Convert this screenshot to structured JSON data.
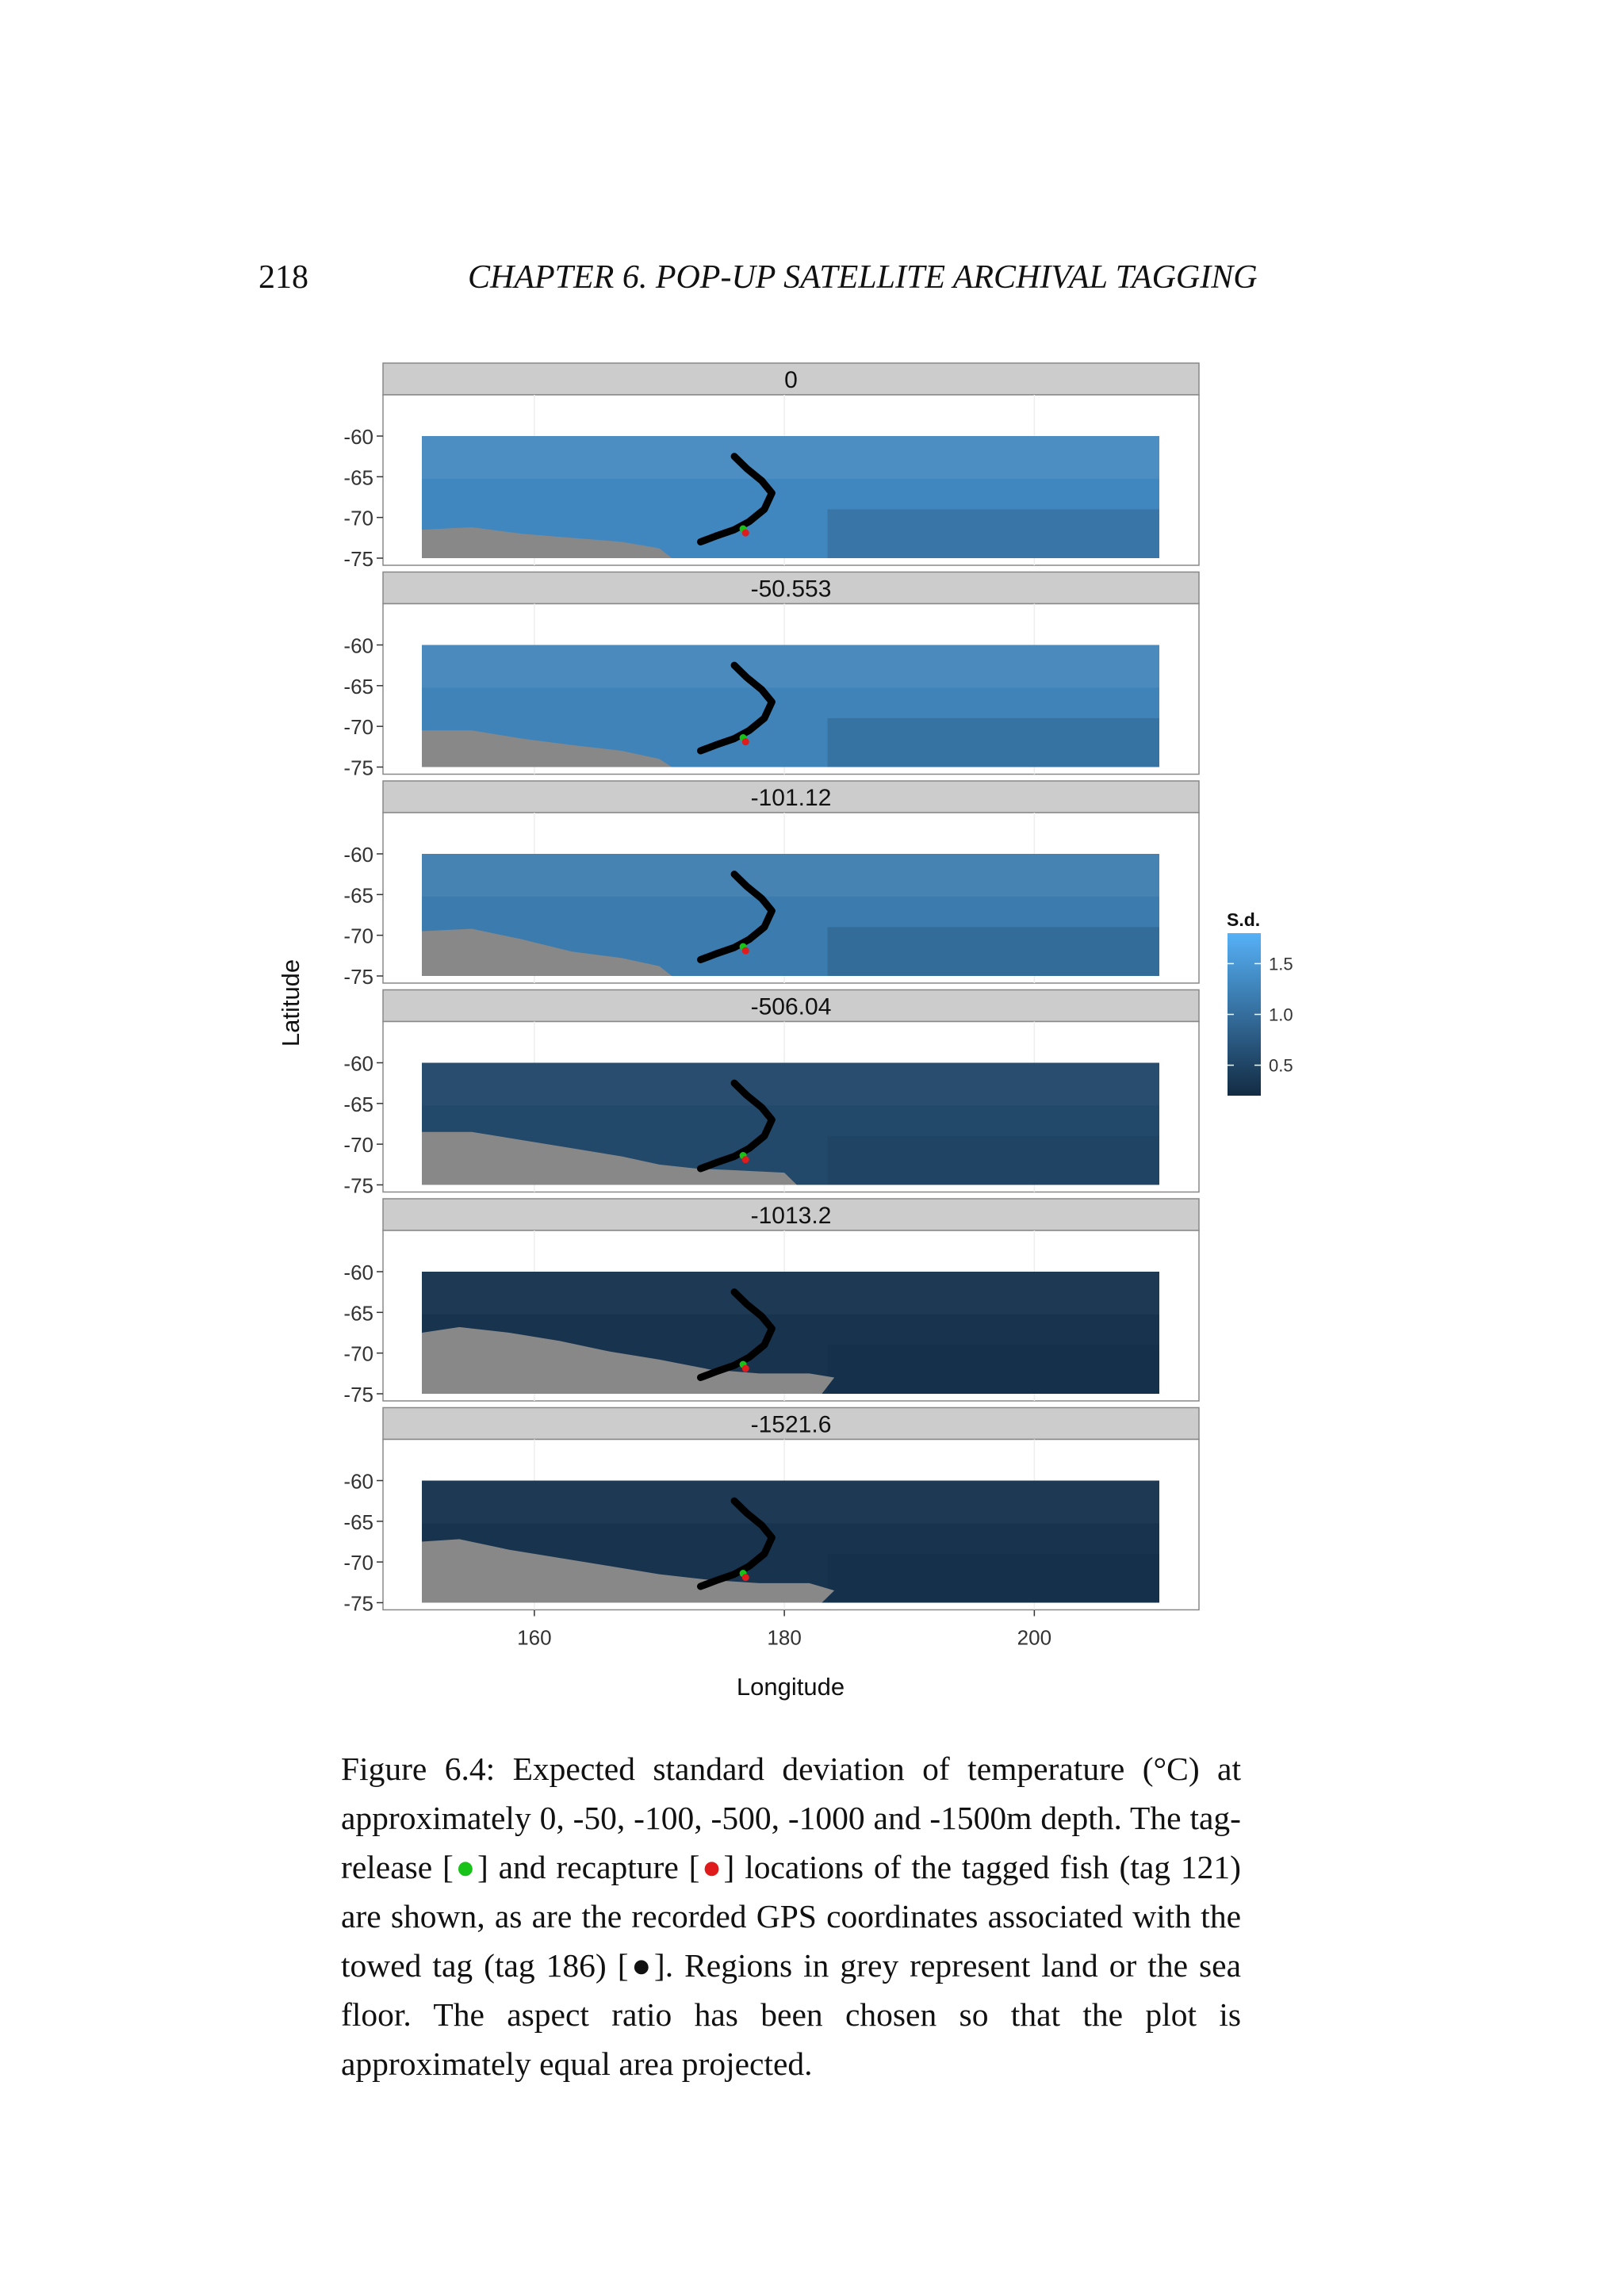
{
  "header": {
    "page_number": "218",
    "running_title": "CHAPTER 6.  POP-UP SATELLITE ARCHIVAL TAGGING"
  },
  "chart_data": {
    "type": "heatmap",
    "title": "",
    "xlabel": "Longitude",
    "ylabel": "Latitude",
    "xlim": [
      148,
      214
    ],
    "ylim": [
      -78,
      -58
    ],
    "x_ticks": [
      "160",
      "180",
      "200"
    ],
    "y_ticks": [
      "-60",
      "-65",
      "-70",
      "-75"
    ],
    "facet_variable": "depth",
    "grid": true,
    "panels": [
      {
        "label": "0",
        "depth": 0,
        "land_edge": [
          [
            151,
            -71.5
          ],
          [
            155,
            -71.2
          ],
          [
            159,
            -72
          ],
          [
            163,
            -72.5
          ],
          [
            167,
            -73
          ],
          [
            170,
            -73.8
          ],
          [
            171,
            -75
          ]
        ]
      },
      {
        "label": "-50.553",
        "depth": -50.553,
        "land_edge": [
          [
            151,
            -70.5
          ],
          [
            155,
            -70.5
          ],
          [
            159,
            -71.5
          ],
          [
            163,
            -72.3
          ],
          [
            167,
            -73
          ],
          [
            170,
            -74
          ],
          [
            171,
            -75
          ]
        ]
      },
      {
        "label": "-101.12",
        "depth": -101.12,
        "land_edge": [
          [
            151,
            -69.5
          ],
          [
            155,
            -69.2
          ],
          [
            159,
            -70.5
          ],
          [
            163,
            -72
          ],
          [
            167,
            -72.8
          ],
          [
            170,
            -73.8
          ],
          [
            171,
            -75
          ]
        ]
      },
      {
        "label": "-506.04",
        "depth": -506.04,
        "land_edge": [
          [
            151,
            -68.5
          ],
          [
            155,
            -68.5
          ],
          [
            159,
            -69.5
          ],
          [
            163,
            -70.5
          ],
          [
            167,
            -71.5
          ],
          [
            170,
            -72.5
          ],
          [
            173,
            -73
          ],
          [
            176,
            -73.2
          ],
          [
            180,
            -73.5
          ],
          [
            181,
            -75
          ]
        ]
      },
      {
        "label": "-1013.2",
        "depth": -1013.2,
        "land_edge": [
          [
            151,
            -67.5
          ],
          [
            154,
            -66.8
          ],
          [
            158,
            -67.5
          ],
          [
            162,
            -68.5
          ],
          [
            166,
            -69.8
          ],
          [
            170,
            -70.8
          ],
          [
            174,
            -72
          ],
          [
            178,
            -72.5
          ],
          [
            182,
            -72.5
          ],
          [
            184,
            -73
          ],
          [
            183,
            -75
          ]
        ]
      },
      {
        "label": "-1521.6",
        "depth": -1521.6,
        "land_edge": [
          [
            151,
            -67.5
          ],
          [
            154,
            -67.2
          ],
          [
            158,
            -68.5
          ],
          [
            162,
            -69.5
          ],
          [
            166,
            -70.5
          ],
          [
            170,
            -71.5
          ],
          [
            174,
            -72.2
          ],
          [
            178,
            -72.6
          ],
          [
            182,
            -72.6
          ],
          [
            184,
            -73.5
          ],
          [
            183,
            -75
          ]
        ]
      }
    ],
    "sd_level_by_panel": [
      1.3,
      1.25,
      1.15,
      0.55,
      0.3,
      0.3
    ],
    "track_gps_tag_186": [
      [
        176,
        -62.5
      ],
      [
        177,
        -64
      ],
      [
        178.2,
        -65.5
      ],
      [
        179,
        -67
      ],
      [
        178.4,
        -69
      ],
      [
        177.2,
        -70.5
      ],
      [
        176,
        -71.5
      ],
      [
        174.5,
        -72.3
      ],
      [
        173.3,
        -73
      ]
    ],
    "release_tag_121": [
      176.7,
      -71.4
    ],
    "recapture_tag_121": [
      176.9,
      -71.9
    ],
    "legend": {
      "title": "S.d.",
      "placement": "right",
      "ticks": [
        "1.5",
        "1.0",
        "0.5"
      ],
      "tick_values": [
        1.5,
        1.0,
        0.5
      ],
      "range": [
        0.2,
        1.8
      ],
      "color_low": "#132b43",
      "color_high": "#56b1f7"
    },
    "colors": {
      "land": "#888888",
      "strip": "#cccccc",
      "track": "#000000",
      "release": "#19c219",
      "recapture": "#e01b1b"
    }
  },
  "caption": {
    "part1": "Figure 6.4: Expected standard deviation of temperature (°C) at approximately 0, -50, -100, -500, -1000 and -1500m depth. The tag-release [",
    "release_marker": "●",
    "part2": "] and recapture [",
    "recapture_marker": "●",
    "part3": "] locations of the tagged fish (tag 121) are shown, as are the recorded GPS coordinates associated with the towed tag (tag 186) [",
    "track_marker": "●",
    "part4": "]. Regions in grey represent land or the sea floor. The aspect ratio has been chosen so that the plot is approximately equal area projected."
  }
}
